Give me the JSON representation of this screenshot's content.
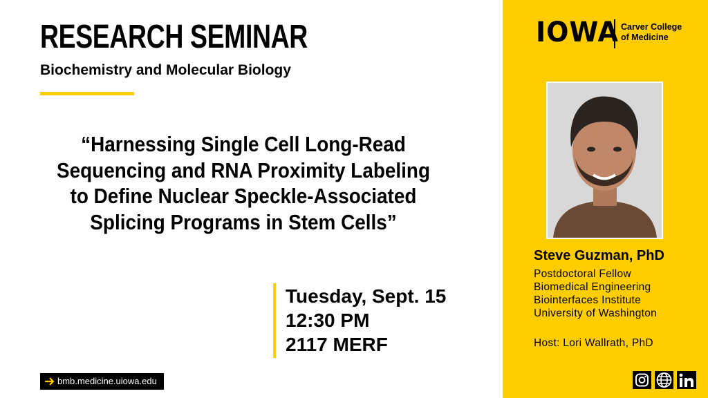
{
  "header": {
    "title": "RESEARCH SEMINAR",
    "subtitle": "Biochemistry and Molecular Biology"
  },
  "talk": {
    "title_lines": [
      "“Harnessing Single Cell Long-Read",
      "Sequencing and RNA Proximity Labeling",
      "to Define Nuclear Speckle-Associated",
      "Splicing Programs in Stem Cells”"
    ]
  },
  "event": {
    "date": "Tuesday, Sept. 15",
    "time": "12:30 PM",
    "location": "2117 MERF"
  },
  "footer": {
    "website": "bmb.medicine.uiowa.edu"
  },
  "logo": {
    "wordmark": "IOWA",
    "college_lines": [
      "Carver College",
      "of Medicine"
    ]
  },
  "speaker": {
    "name": "Steve Guzman, PhD",
    "affiliation_lines": [
      "Postdoctoral Fellow",
      "Biomedical Engineering",
      "Biointerfaces Institute",
      "University of Washington"
    ],
    "host": "Host: Lori Wallrath, PhD"
  }
}
